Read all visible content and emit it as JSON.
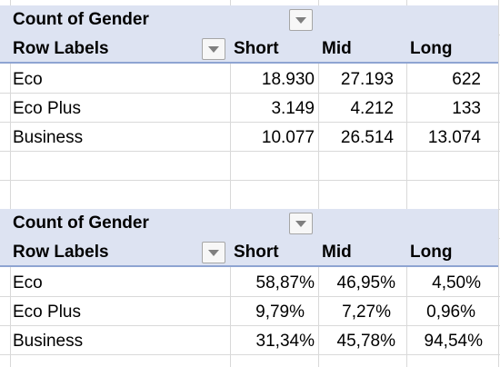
{
  "pivots": [
    {
      "value_field": "Count of Gender",
      "row_labels": "Row Labels",
      "columns": [
        "Short",
        "Mid",
        "Long"
      ],
      "rows": [
        {
          "label": "Eco",
          "values": [
            "18.930",
            "27.193",
            "622"
          ]
        },
        {
          "label": "Eco Plus",
          "values": [
            "3.149",
            "4.212",
            "133"
          ]
        },
        {
          "label": "Business",
          "values": [
            "10.077",
            "26.514",
            "13.074"
          ]
        }
      ]
    },
    {
      "value_field": "Count of Gender",
      "row_labels": "Row Labels",
      "columns": [
        "Short",
        "Mid",
        "Long"
      ],
      "rows": [
        {
          "label": "Eco",
          "values": [
            "58,87%",
            "46,95%",
            "4,50%"
          ]
        },
        {
          "label": "Eco Plus",
          "values": [
            "9,79%",
            "7,27%",
            "0,96%"
          ]
        },
        {
          "label": "Business",
          "values": [
            "31,34%",
            "45,78%",
            "94,54%"
          ]
        }
      ]
    }
  ],
  "icons": {
    "filter_dropdown": "chevron-down-icon"
  },
  "colors": {
    "header_band": "#dde3f2",
    "header_line": "#8ea4d2",
    "gridline": "#d9d9d9"
  }
}
